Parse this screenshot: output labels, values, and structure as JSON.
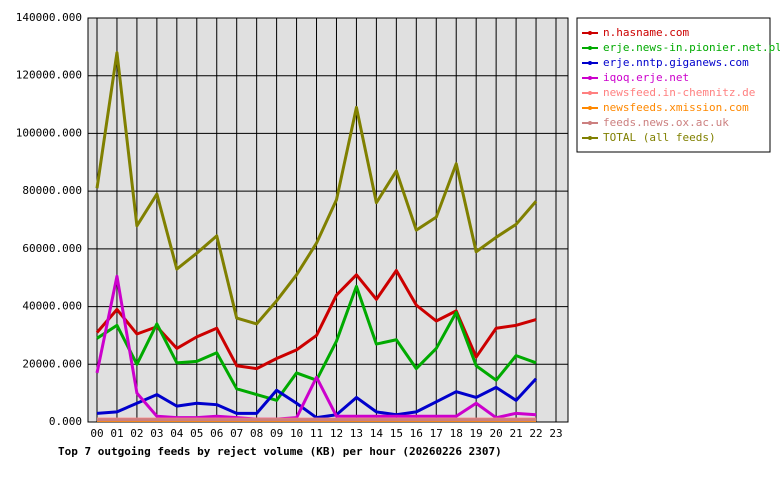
{
  "chart_data": {
    "type": "line",
    "title": "Top 7 outgoing feeds by reject volume (KB) per hour (20260226 2307)",
    "categories": [
      "00",
      "01",
      "02",
      "03",
      "04",
      "05",
      "06",
      "07",
      "08",
      "09",
      "10",
      "11",
      "12",
      "13",
      "14",
      "15",
      "16",
      "17",
      "18",
      "19",
      "20",
      "21",
      "22",
      "23"
    ],
    "ylim": [
      0,
      140000
    ],
    "yticks": [
      {
        "value": 0,
        "label": "0.000"
      },
      {
        "value": 20000,
        "label": "20000.000"
      },
      {
        "value": 40000,
        "label": "40000.000"
      },
      {
        "value": 60000,
        "label": "60000.000"
      },
      {
        "value": 80000,
        "label": "80000.000"
      },
      {
        "value": 100000,
        "label": "100000.000"
      },
      {
        "value": 120000,
        "label": "120000.000"
      },
      {
        "value": 140000,
        "label": "140000.000"
      }
    ],
    "grid": true,
    "legend": "right",
    "series": [
      {
        "name": "n.hasname.com",
        "color": "#cc0000",
        "values": [
          31000,
          39000,
          30500,
          33000,
          25500,
          29500,
          32500,
          19500,
          18500,
          22000,
          25000,
          30000,
          44000,
          51000,
          42500,
          52500,
          40500,
          35000,
          38500,
          22500,
          32500,
          33500,
          35500,
          null
        ]
      },
      {
        "name": "erje.news-in.pionier.net.pl",
        "color": "#00aa00",
        "values": [
          29000,
          33500,
          20000,
          34000,
          20500,
          21000,
          24000,
          11500,
          9500,
          7500,
          17000,
          14500,
          28000,
          47000,
          27000,
          28500,
          18500,
          25500,
          38000,
          19500,
          14500,
          23000,
          20500,
          null
        ]
      },
      {
        "name": "erje.nntp.giganews.com",
        "color": "#0000cc",
        "values": [
          3000,
          3500,
          6500,
          9500,
          5500,
          6500,
          6000,
          3000,
          3000,
          11000,
          6500,
          1500,
          2500,
          8500,
          3500,
          2500,
          3500,
          7000,
          10500,
          8500,
          12000,
          7500,
          15000,
          null
        ]
      },
      {
        "name": "iqoq.erje.net",
        "color": "#cc00cc",
        "values": [
          17000,
          50500,
          10000,
          2000,
          1500,
          1500,
          2000,
          1500,
          1000,
          1000,
          1500,
          15500,
          2000,
          2000,
          2000,
          2000,
          2000,
          2000,
          2000,
          6500,
          1500,
          3000,
          2500,
          null
        ]
      },
      {
        "name": "newsfeed.in-chemnitz.de",
        "color": "#ff8080",
        "values": [
          1000,
          1000,
          1000,
          1000,
          1000,
          1000,
          1000,
          1000,
          1000,
          1000,
          1000,
          1000,
          1000,
          1000,
          1000,
          1000,
          1000,
          1000,
          1000,
          1000,
          1000,
          1000,
          1000,
          null
        ]
      },
      {
        "name": "newsfeeds.xmission.com",
        "color": "#ff8800",
        "values": [
          500,
          500,
          500,
          500,
          500,
          500,
          500,
          500,
          500,
          500,
          500,
          500,
          500,
          500,
          500,
          500,
          500,
          500,
          500,
          500,
          500,
          500,
          500,
          null
        ]
      },
      {
        "name": "feeds.news.ox.ac.uk",
        "color": "#cc8080",
        "values": [
          800,
          800,
          800,
          800,
          800,
          800,
          800,
          800,
          800,
          800,
          800,
          800,
          800,
          800,
          800,
          800,
          800,
          800,
          800,
          800,
          800,
          800,
          800,
          null
        ]
      },
      {
        "name": "TOTAL (all feeds)",
        "color": "#808000",
        "values": [
          81000,
          128000,
          68000,
          79000,
          53000,
          58500,
          64500,
          36000,
          34000,
          42000,
          51000,
          62000,
          77000,
          109000,
          76000,
          87000,
          66500,
          71000,
          89500,
          59000,
          64000,
          68500,
          76500,
          null
        ]
      }
    ]
  }
}
